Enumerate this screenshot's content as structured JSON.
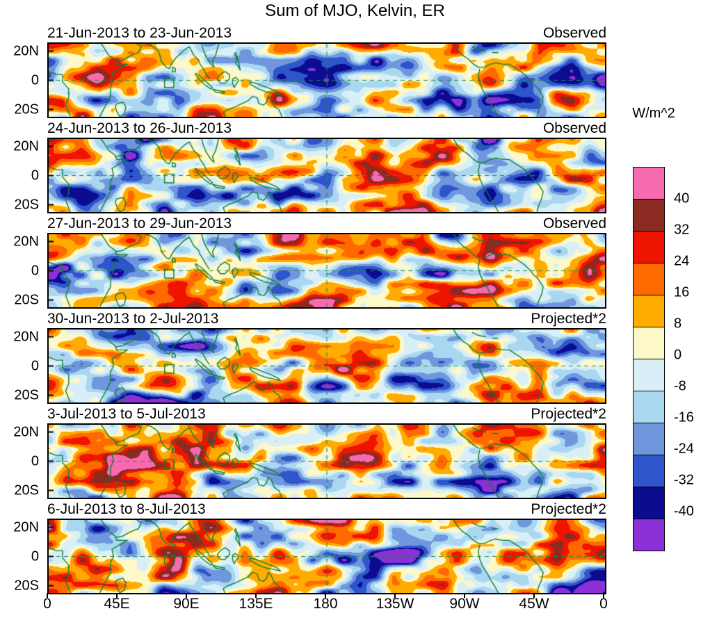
{
  "title": "Sum of MJO, Kelvin, ER",
  "x_axis": {
    "tick_labels": [
      "0",
      "45E",
      "90E",
      "135E",
      "180",
      "135W",
      "90W",
      "45W",
      "0"
    ]
  },
  "y_axis": {
    "tick_labels": [
      "20N",
      "0",
      "20S"
    ]
  },
  "colorbar": {
    "unit": "W/m^2",
    "tick_labels": [
      "40",
      "32",
      "24",
      "16",
      "8",
      "0",
      "-8",
      "-16",
      "-24",
      "-32",
      "-40"
    ],
    "colors_top_to_bottom": [
      "#f76ab0",
      "#8b2a21",
      "#ee1400",
      "#ff6a00",
      "#ffab00",
      "#fdf8c8",
      "#d9eff8",
      "#a9d7ef",
      "#7096dd",
      "#2f55cd",
      "#0c0c91",
      "#8b2fd6"
    ]
  },
  "panels": [
    {
      "date_label": "21-Jun-2013 to 23-Jun-2013",
      "type_label": "Observed",
      "seed": 101
    },
    {
      "date_label": "24-Jun-2013 to 26-Jun-2013",
      "type_label": "Observed",
      "seed": 202
    },
    {
      "date_label": "27-Jun-2013 to 29-Jun-2013",
      "type_label": "Observed",
      "seed": 303
    },
    {
      "date_label": "30-Jun-2013 to 2-Jul-2013",
      "type_label": "Projected*2",
      "seed": 404
    },
    {
      "date_label": "3-Jul-2013 to 5-Jul-2013",
      "type_label": "Projected*2",
      "seed": 505
    },
    {
      "date_label": "6-Jul-2013 to 8-Jul-2013",
      "type_label": "Projected*2",
      "seed": 606
    }
  ],
  "chart_data": {
    "type": "heatmap",
    "subtype": "filled-contour longitude-latitude anomaly maps, 6 stacked time panels",
    "title": "Sum of MJO, Kelvin, ER",
    "units": "W/m^2",
    "lon_range_deg": [
      0,
      360
    ],
    "lat_range_deg": [
      -25,
      25
    ],
    "x_tick_lons": [
      0,
      45,
      90,
      135,
      180,
      225,
      270,
      315,
      360
    ],
    "y_tick_lats": [
      20,
      0,
      -20
    ],
    "contour_levels": [
      -40,
      -32,
      -24,
      -16,
      -8,
      0,
      8,
      16,
      24,
      32,
      40
    ],
    "legend_position": "right",
    "grid": "dashed equator line and dashed meridian at 180",
    "panels": [
      {
        "period": "21-Jun-2013 to 23-Jun-2013",
        "kind": "Observed"
      },
      {
        "period": "24-Jun-2013 to 26-Jun-2013",
        "kind": "Observed"
      },
      {
        "period": "27-Jun-2013 to 29-Jun-2013",
        "kind": "Observed"
      },
      {
        "period": "30-Jun-2013 to 2-Jul-2013",
        "kind": "Projected*2"
      },
      {
        "period": "3-Jul-2013 to 5-Jul-2013",
        "kind": "Projected*2"
      },
      {
        "period": "6-Jul-2013 to 8-Jul-2013",
        "kind": "Projected*2"
      }
    ],
    "region_box": {
      "lon_min": 75,
      "lon_max": 81,
      "lat_min": -5,
      "lat_max": 1
    },
    "coastline_color": "#0f7d33",
    "coastlines": [
      [
        [
          0,
          6
        ],
        [
          5,
          4
        ],
        [
          9,
          4
        ],
        [
          9,
          -1
        ],
        [
          13,
          -6
        ],
        [
          13,
          -12
        ],
        [
          11,
          -17
        ],
        [
          14,
          -25
        ]
      ],
      [
        [
          33,
          -25
        ],
        [
          37,
          -17
        ],
        [
          40,
          -11
        ],
        [
          40,
          -4
        ],
        [
          42,
          0
        ],
        [
          41,
          5
        ],
        [
          46,
          8
        ],
        [
          51,
          11
        ],
        [
          44,
          11
        ],
        [
          43,
          14
        ],
        [
          39,
          17
        ],
        [
          36,
          22
        ],
        [
          34,
          25
        ]
      ],
      [
        [
          44,
          -16
        ],
        [
          48,
          -15
        ],
        [
          50,
          -18
        ],
        [
          49,
          -23
        ],
        [
          46,
          -25
        ],
        [
          44,
          -21
        ],
        [
          43,
          -18
        ],
        [
          44,
          -16
        ]
      ],
      [
        [
          43,
          13
        ],
        [
          48,
          14
        ],
        [
          53,
          17
        ],
        [
          58,
          19
        ],
        [
          60,
          23
        ],
        [
          57,
          25
        ]
      ],
      [
        [
          63,
          25
        ],
        [
          66,
          24
        ],
        [
          69,
          22
        ],
        [
          71,
          20
        ],
        [
          72,
          17
        ],
        [
          73,
          13
        ],
        [
          76,
          9
        ],
        [
          78,
          8
        ],
        [
          80,
          12
        ],
        [
          82,
          15
        ],
        [
          85,
          18
        ],
        [
          88,
          21
        ],
        [
          91,
          23
        ],
        [
          92,
          21
        ],
        [
          94,
          17
        ],
        [
          97,
          14
        ],
        [
          98,
          11
        ],
        [
          100,
          8
        ],
        [
          102,
          4
        ],
        [
          104,
          1
        ]
      ],
      [
        [
          80,
          9
        ],
        [
          82,
          8
        ],
        [
          82,
          6
        ],
        [
          80,
          6
        ],
        [
          80,
          9
        ]
      ],
      [
        [
          99,
          25
        ],
        [
          100,
          21
        ],
        [
          102,
          16
        ],
        [
          105,
          11
        ],
        [
          107,
          9
        ],
        [
          106,
          13
        ],
        [
          108,
          17
        ],
        [
          109,
          21
        ],
        [
          110,
          25
        ]
      ],
      [
        [
          95,
          5
        ],
        [
          99,
          2
        ],
        [
          103,
          -2
        ],
        [
          106,
          -5
        ],
        [
          105,
          -6
        ],
        [
          101,
          -3
        ],
        [
          97,
          1
        ],
        [
          95,
          4
        ],
        [
          95,
          5
        ]
      ],
      [
        [
          106,
          -6
        ],
        [
          110,
          -7
        ],
        [
          114,
          -8
        ],
        [
          113,
          -9
        ],
        [
          108,
          -8
        ],
        [
          106,
          -6
        ]
      ],
      [
        [
          109,
          1
        ],
        [
          111,
          4
        ],
        [
          114,
          6
        ],
        [
          117,
          4
        ],
        [
          117,
          1
        ],
        [
          114,
          -2
        ],
        [
          111,
          -2
        ],
        [
          109,
          1
        ]
      ],
      [
        [
          119,
          1
        ],
        [
          121,
          2
        ],
        [
          123,
          0
        ],
        [
          121,
          -3
        ],
        [
          120,
          -5
        ],
        [
          119,
          -2
        ],
        [
          119,
          1
        ]
      ],
      [
        [
          130,
          -1
        ],
        [
          134,
          -2
        ],
        [
          139,
          -4
        ],
        [
          144,
          -6
        ],
        [
          148,
          -8
        ],
        [
          150,
          -10
        ],
        [
          146,
          -9
        ],
        [
          141,
          -8
        ],
        [
          136,
          -6
        ],
        [
          131,
          -3
        ],
        [
          130,
          -1
        ]
      ],
      [
        [
          120,
          18
        ],
        [
          122,
          15
        ],
        [
          121,
          12
        ],
        [
          123,
          9
        ],
        [
          124,
          7
        ],
        [
          123,
          12
        ],
        [
          122,
          16
        ],
        [
          121,
          19
        ],
        [
          120,
          18
        ]
      ],
      [
        [
          114,
          -25
        ],
        [
          113,
          -22
        ],
        [
          116,
          -20
        ],
        [
          121,
          -18
        ],
        [
          125,
          -16
        ],
        [
          129,
          -14
        ],
        [
          132,
          -11
        ],
        [
          135,
          -12
        ],
        [
          136,
          -16
        ],
        [
          139,
          -17
        ],
        [
          141,
          -15
        ],
        [
          142,
          -11
        ],
        [
          144,
          -13
        ],
        [
          146,
          -18
        ],
        [
          149,
          -20
        ],
        [
          151,
          -25
        ]
      ],
      [
        [
          262,
          25
        ],
        [
          265,
          20
        ],
        [
          268,
          17
        ],
        [
          271,
          15
        ],
        [
          275,
          11
        ],
        [
          278,
          9
        ],
        [
          282,
          9
        ],
        [
          286,
          11
        ],
        [
          289,
          12
        ],
        [
          294,
          11
        ],
        [
          298,
          11
        ],
        [
          301,
          9
        ],
        [
          304,
          7
        ],
        [
          308,
          4
        ],
        [
          311,
          1
        ],
        [
          314,
          -3
        ],
        [
          317,
          -6
        ],
        [
          320,
          -11
        ],
        [
          319,
          -16
        ],
        [
          317,
          -21
        ],
        [
          316,
          -25
        ]
      ],
      [
        [
          279,
          8
        ],
        [
          278,
          3
        ],
        [
          279,
          -2
        ],
        [
          281,
          -7
        ],
        [
          284,
          -12
        ],
        [
          286,
          -16
        ],
        [
          289,
          -21
        ],
        [
          291,
          -25
        ]
      ],
      [
        [
          274,
          23
        ],
        [
          278,
          21
        ],
        [
          283,
          20
        ]
      ],
      [
        [
          287,
          19
        ],
        [
          291,
          19
        ]
      ]
    ]
  }
}
